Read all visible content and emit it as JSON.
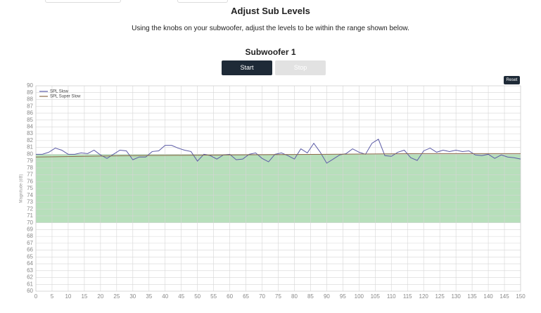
{
  "header": {
    "title": "Adjust Sub Levels",
    "instructions": "Using the knobs on your subwoofer, adjust the levels to be within the range shown below.",
    "section": "Subwoofer 1"
  },
  "buttons": {
    "start": "Start",
    "stop": "Stop",
    "reset": "Reset"
  },
  "chart_data": {
    "type": "line",
    "ylabel": "Magnitude (dB)",
    "xlim": [
      0,
      150
    ],
    "ylim": [
      60,
      90
    ],
    "xticks": [
      0,
      5,
      10,
      15,
      20,
      25,
      30,
      35,
      40,
      45,
      50,
      55,
      60,
      65,
      70,
      75,
      80,
      85,
      90,
      95,
      100,
      105,
      110,
      115,
      120,
      125,
      130,
      135,
      140,
      145,
      150
    ],
    "yticks": [
      60,
      61,
      62,
      63,
      64,
      65,
      66,
      67,
      68,
      69,
      70,
      71,
      72,
      73,
      74,
      75,
      76,
      77,
      78,
      79,
      80,
      81,
      82,
      83,
      84,
      85,
      86,
      87,
      88,
      89,
      90
    ],
    "grid": true,
    "legend": "top-left",
    "target_range": [
      70,
      80
    ],
    "target_color": "#b7dfbb",
    "series": [
      {
        "name": "SPL Slow",
        "color": "#5b5ba6",
        "x": [
          0,
          2,
          4,
          6,
          8,
          10,
          12,
          14,
          16,
          18,
          20,
          22,
          24,
          26,
          28,
          30,
          32,
          34,
          36,
          38,
          40,
          42,
          44,
          46,
          48,
          50,
          52,
          54,
          56,
          58,
          60,
          62,
          64,
          66,
          68,
          70,
          72,
          74,
          76,
          78,
          80,
          82,
          84,
          86,
          88,
          90,
          92,
          94,
          96,
          98,
          100,
          102,
          104,
          106,
          108,
          110,
          112,
          114,
          116,
          118,
          120,
          122,
          124,
          126,
          128,
          130,
          132,
          134,
          136,
          138,
          140,
          142,
          144,
          146,
          148,
          150
        ],
        "values": [
          80.0,
          80.0,
          80.3,
          80.9,
          80.6,
          80.0,
          80.0,
          80.2,
          80.1,
          80.6,
          79.9,
          79.4,
          80.0,
          80.6,
          80.5,
          79.2,
          79.6,
          79.6,
          80.4,
          80.5,
          81.3,
          81.3,
          80.9,
          80.6,
          80.4,
          79.0,
          80.0,
          79.8,
          79.3,
          79.9,
          80.0,
          79.2,
          79.3,
          80.0,
          80.2,
          79.4,
          78.9,
          80.0,
          80.2,
          79.8,
          79.3,
          80.8,
          80.2,
          81.6,
          80.3,
          78.7,
          79.3,
          79.9,
          80.1,
          80.8,
          80.3,
          80.0,
          81.6,
          82.2,
          79.8,
          79.7,
          80.3,
          80.6,
          79.5,
          79.1,
          80.5,
          80.9,
          80.3,
          80.6,
          80.4,
          80.6,
          80.4,
          80.5,
          79.9,
          79.8,
          80.0,
          79.4,
          79.9,
          79.6,
          79.5,
          79.3
        ]
      },
      {
        "name": "SPL Super Slow",
        "color": "#8c6a48",
        "x": [
          0,
          30,
          60,
          90,
          120,
          150
        ],
        "values": [
          79.6,
          79.8,
          79.9,
          80.0,
          80.1,
          80.1
        ]
      }
    ]
  }
}
